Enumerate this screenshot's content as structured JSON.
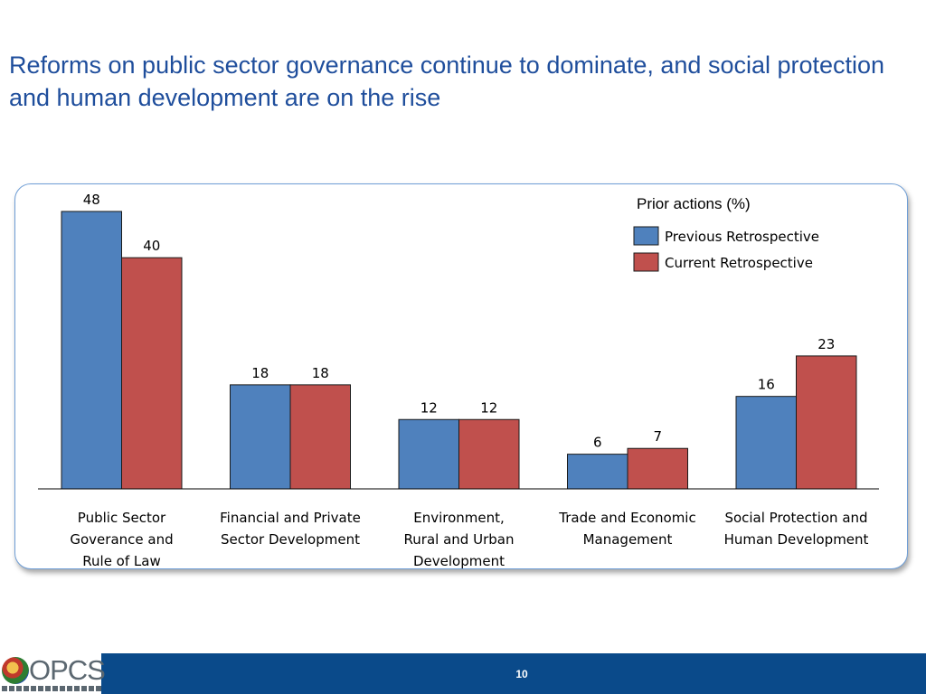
{
  "slide": {
    "title": "Reforms on public sector governance continue to dominate, and social protection and human development are on the rise",
    "page_number": "10"
  },
  "colors": {
    "title": "#1f4e9c",
    "previous": "#4f81bd",
    "current": "#c0504d",
    "footer": "#0a4a8a",
    "frame": "#6f9ed6"
  },
  "chart_data": {
    "type": "bar",
    "legend_title": "Prior actions (%)",
    "legend_position": "top-right",
    "categories": [
      [
        "Public Sector",
        "Goverance and",
        "Rule of Law"
      ],
      [
        "Financial and Private",
        "Sector Development"
      ],
      [
        "Environment,",
        "Rural and Urban",
        "Development"
      ],
      [
        "Trade and Economic",
        "Management"
      ],
      [
        "Social Protection and",
        "Human Development"
      ]
    ],
    "series": [
      {
        "name": "Previous Retrospective",
        "values": [
          48,
          18,
          12,
          6,
          16
        ]
      },
      {
        "name": "Current Retrospective",
        "values": [
          40,
          18,
          12,
          7,
          23
        ]
      }
    ],
    "ylim": [
      0,
      48
    ],
    "grid": false
  },
  "footer": {
    "logo_icon": "globe-icon"
  }
}
